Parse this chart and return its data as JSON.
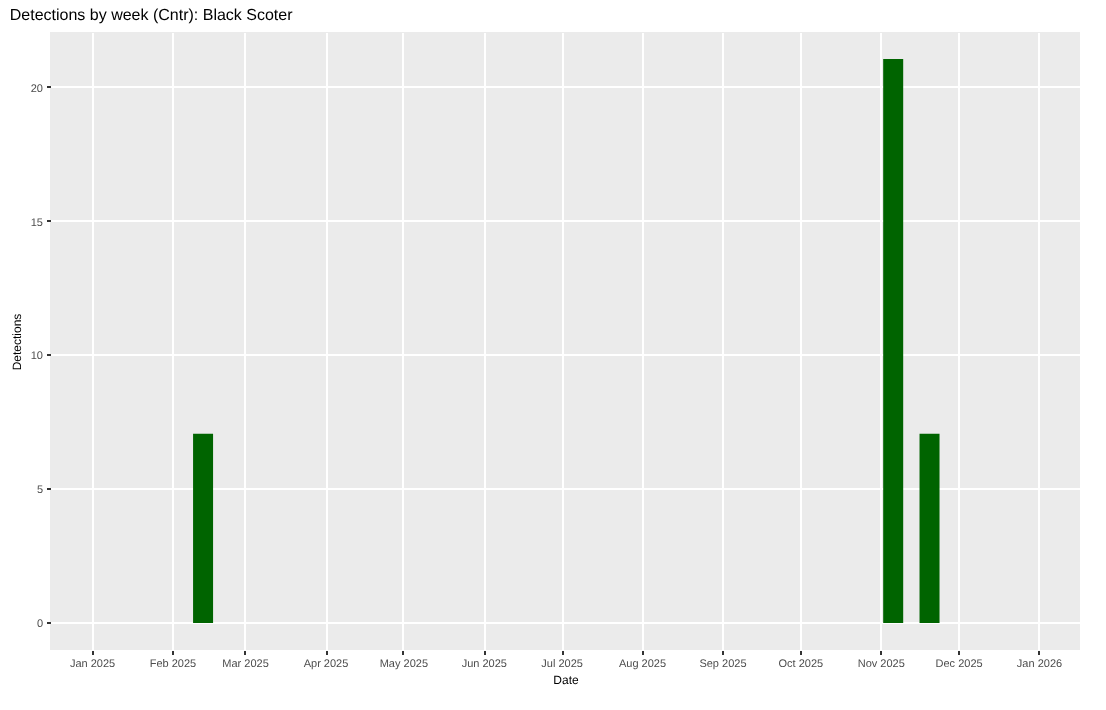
{
  "chart_data": {
    "type": "bar",
    "title": "Detections by week (Cntr): Black Scoter",
    "xlabel": "Date",
    "ylabel": "Detections",
    "x": [
      "2025-02-13",
      "2025-11-06",
      "2025-11-20"
    ],
    "values": [
      7,
      21,
      7
    ],
    "color": "#006400",
    "xlim": [
      "2024-12-16",
      "2026-01-17"
    ],
    "xticks": [
      {
        "value": "2025-01-01",
        "label": "Jan 2025"
      },
      {
        "value": "2025-02-01",
        "label": "Feb 2025"
      },
      {
        "value": "2025-03-01",
        "label": "Mar 2025"
      },
      {
        "value": "2025-04-01",
        "label": "Apr 2025"
      },
      {
        "value": "2025-05-01",
        "label": "May 2025"
      },
      {
        "value": "2025-06-01",
        "label": "Jun 2025"
      },
      {
        "value": "2025-07-01",
        "label": "Jul 2025"
      },
      {
        "value": "2025-08-01",
        "label": "Aug 2025"
      },
      {
        "value": "2025-09-01",
        "label": "Sep 2025"
      },
      {
        "value": "2025-10-01",
        "label": "Oct 2025"
      },
      {
        "value": "2025-11-01",
        "label": "Nov 2025"
      },
      {
        "value": "2025-12-01",
        "label": "Dec 2025"
      },
      {
        "value": "2026-01-01",
        "label": "Jan 2026"
      }
    ],
    "ylim": [
      -1.05,
      22.05
    ],
    "yticks": [
      0,
      5,
      10,
      15,
      20
    ],
    "grid": true
  }
}
